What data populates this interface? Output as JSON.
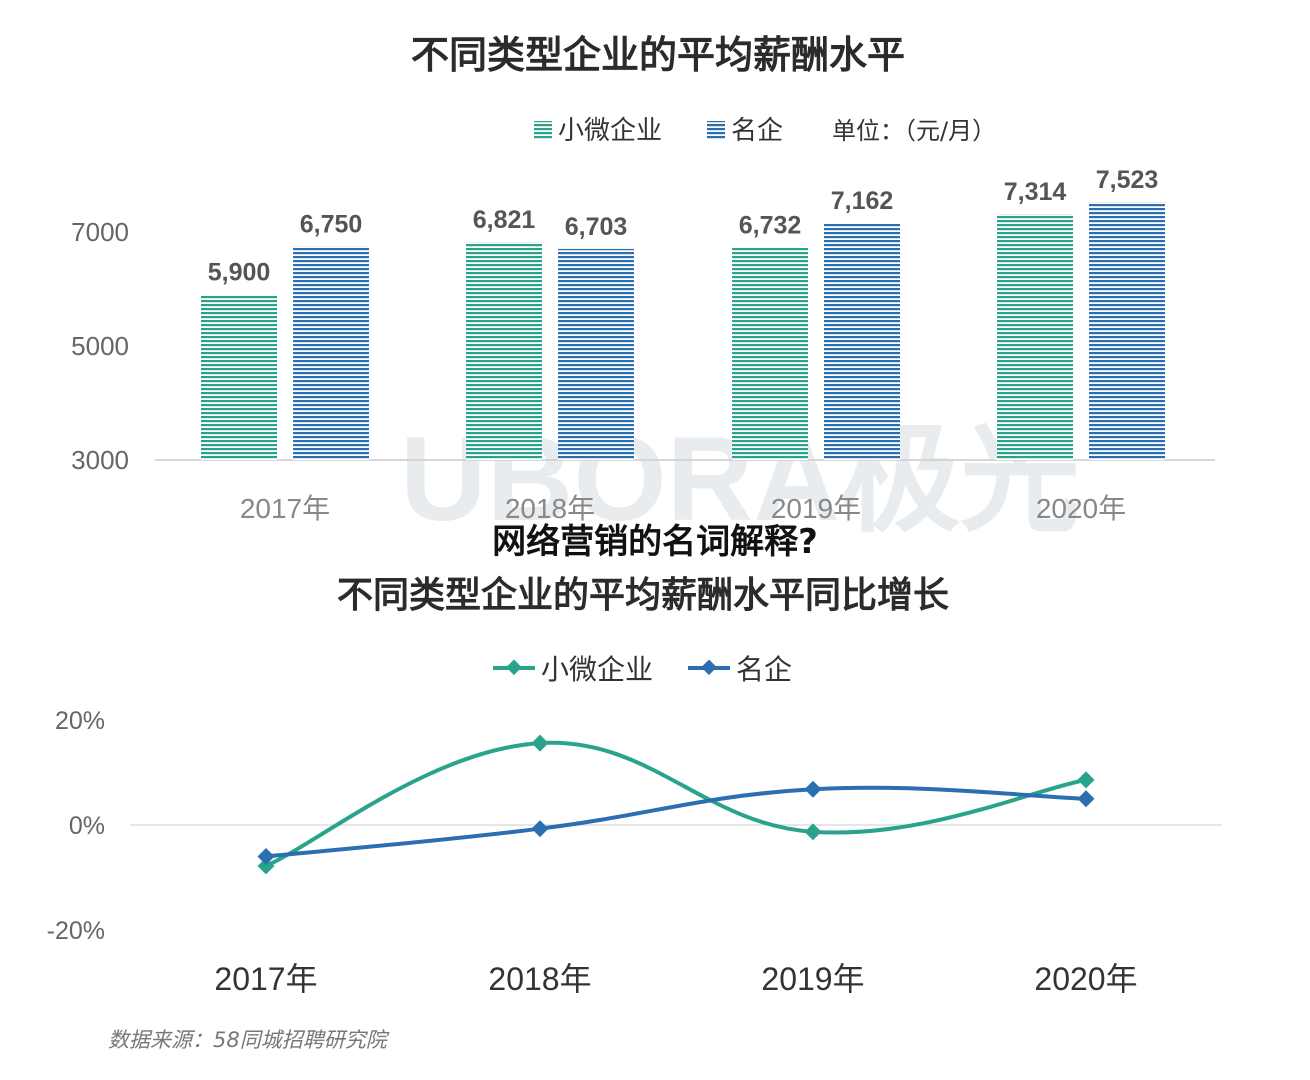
{
  "overlay_title": "网络营销的名词解释?",
  "watermark_text": "UBORA极光",
  "source_note": "数据来源：58同城招聘研究院",
  "colors": {
    "small": "#2aa38d",
    "large": "#2b6fb0",
    "axis": "#cccccc"
  },
  "chart_data": [
    {
      "type": "bar",
      "title": "不同类型企业的平均薪酬水平",
      "unit_label": "单位：（元/月）",
      "categories": [
        "2017年",
        "2018年",
        "2019年",
        "2020年"
      ],
      "series": [
        {
          "name": "小微企业",
          "values": [
            5900,
            6821,
            6732,
            7314
          ],
          "labels": [
            "5,900",
            "6,821",
            "6,732",
            "7,314"
          ]
        },
        {
          "name": "名企",
          "values": [
            6750,
            6703,
            7162,
            7523
          ],
          "labels": [
            "6,750",
            "6,703",
            "7,162",
            "7,523"
          ]
        }
      ],
      "yticks": [
        "7000",
        "5000",
        "3000"
      ],
      "ylim": [
        3000,
        7500
      ],
      "legend": "top-right",
      "grid": false
    },
    {
      "type": "line",
      "title": "不同类型企业的平均薪酬水平同比增长",
      "categories": [
        "2017年",
        "2018年",
        "2019年",
        "2020年"
      ],
      "series": [
        {
          "name": "小微企业",
          "values": [
            -7.8,
            15.6,
            -1.3,
            8.6
          ]
        },
        {
          "name": "名企",
          "values": [
            -6.0,
            -0.7,
            6.8,
            5.0
          ]
        }
      ],
      "yticks": [
        "20%",
        "0%",
        "-20%"
      ],
      "ylim": [
        -20,
        20
      ],
      "legend": "top-center",
      "grid": false
    }
  ]
}
